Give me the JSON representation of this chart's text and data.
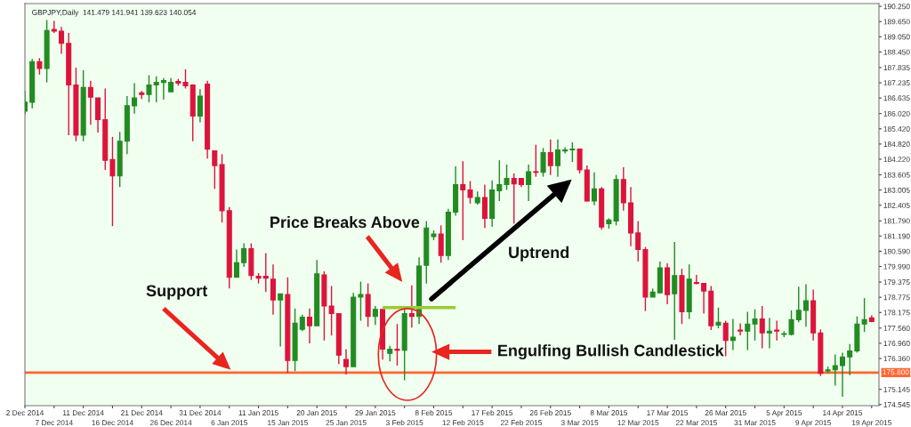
{
  "chart_data": {
    "type": "candlestick",
    "title": "GBPJPY,Daily  141.479 141.941 139.623 140.054",
    "categories": [
      "2 Dec 2014",
      null,
      null,
      null,
      "7 Dec 2014",
      null,
      null,
      null,
      "11 Dec 2014",
      null,
      null,
      null,
      "16 Dec 2014",
      null,
      null,
      null,
      "21 Dec 2014",
      null,
      null,
      null,
      "26 Dec 2014",
      null,
      null,
      null,
      "31 Dec 2014",
      null,
      null,
      null,
      "6 Jan 2015",
      null,
      null,
      null,
      "11 Jan 2015",
      null,
      null,
      null,
      "15 Jan 2015",
      null,
      null,
      null,
      "20 Jan 2015",
      null,
      null,
      null,
      "25 Jan 2015",
      null,
      null,
      null,
      "29 Jan 2015",
      null,
      null,
      null,
      "3 Feb 2015",
      null,
      null,
      null,
      "8 Feb 2015",
      null,
      null,
      null,
      "12 Feb 2015",
      null,
      null,
      null,
      "17 Feb 2015",
      null,
      null,
      null,
      "22 Feb 2015",
      null,
      null,
      null,
      "26 Feb 2015",
      null,
      null,
      null,
      "3 Mar 2015",
      null,
      null,
      null,
      "8 Mar 2015",
      null,
      null,
      null,
      "12 Mar 2015",
      null,
      null,
      null,
      "17 Mar 2015",
      null,
      null,
      null,
      "22 Mar 2015",
      null,
      null,
      null,
      "26 Mar 2015",
      null,
      null,
      null,
      "31 Mar 2015",
      null,
      null,
      null,
      "5 Apr 2015",
      null,
      null,
      null,
      "9 Apr 2015",
      null,
      null,
      null,
      "14 Apr 2015",
      null,
      null,
      null,
      "19 Apr 2015"
    ],
    "ohlc": [
      [
        186.12,
        186.91,
        185.99,
        186.47
      ],
      [
        186.47,
        188.18,
        186.23,
        188.07
      ],
      [
        188.07,
        188.21,
        187.56,
        187.8
      ],
      [
        187.8,
        189.71,
        187.25,
        189.3
      ],
      [
        189.34,
        189.68,
        189.2,
        189.27
      ],
      [
        189.27,
        189.44,
        188.38,
        188.79
      ],
      [
        188.79,
        189.2,
        185.17,
        187.15
      ],
      [
        187.15,
        187.83,
        184.93,
        185.17
      ],
      [
        185.17,
        187.73,
        184.93,
        187.05
      ],
      [
        187.05,
        187.32,
        185.58,
        186.67
      ],
      [
        186.64,
        186.64,
        185.27,
        185.78
      ],
      [
        185.78,
        187.01,
        183.8,
        184.18
      ],
      [
        184.21,
        185.1,
        181.58,
        183.56
      ],
      [
        183.56,
        185.3,
        183.12,
        184.93
      ],
      [
        184.93,
        186.71,
        184.42,
        186.33
      ],
      [
        186.33,
        187.22,
        186.02,
        186.64
      ],
      [
        186.84,
        186.91,
        186.6,
        186.77
      ],
      [
        186.77,
        187.53,
        186.47,
        187.15
      ],
      [
        187.15,
        187.49,
        186.47,
        187.25
      ],
      [
        187.25,
        187.42,
        186.57,
        187.32
      ],
      [
        186.88,
        187.42,
        186.88,
        187.25
      ],
      [
        187.29,
        187.39,
        187.12,
        187.22
      ],
      [
        187.25,
        187.77,
        187.01,
        187.12
      ],
      [
        187.15,
        187.18,
        184.93,
        185.92
      ],
      [
        185.92,
        186.98,
        185.68,
        186.71
      ],
      [
        187.18,
        187.32,
        184.25,
        184.62
      ],
      [
        184.55,
        184.55,
        183.05,
        183.97
      ],
      [
        184.01,
        184.42,
        181.72,
        182.19
      ],
      [
        182.19,
        182.33,
        179.12,
        179.56
      ],
      [
        179.56,
        180.66,
        179.56,
        180.14
      ],
      [
        180.14,
        180.9,
        179.97,
        180.69
      ],
      [
        180.69,
        180.9,
        179.46,
        179.63
      ],
      [
        179.6,
        179.73,
        179.32,
        179.53
      ],
      [
        179.6,
        180.52,
        178.98,
        179.53
      ],
      [
        179.49,
        180.07,
        178.09,
        178.67
      ],
      [
        178.67,
        178.91,
        176.83,
        178.91
      ],
      [
        178.88,
        179.56,
        175.8,
        176.28
      ],
      [
        176.28,
        178.33,
        175.87,
        177.75
      ],
      [
        177.51,
        178.09,
        177.44,
        177.99
      ],
      [
        177.99,
        178.33,
        176.96,
        177.65
      ],
      [
        177.65,
        180.25,
        177.65,
        179.7
      ],
      [
        179.66,
        179.8,
        177.07,
        178.43
      ],
      [
        178.43,
        179.22,
        177.27,
        178.13
      ],
      [
        178.13,
        178.13,
        176.14,
        176.49
      ],
      [
        176.32,
        176.73,
        175.73,
        176.04
      ],
      [
        176.04,
        178.95,
        176.04,
        178.78
      ],
      [
        178.78,
        179.39,
        177.85,
        178.88
      ],
      [
        178.88,
        179.32,
        177.61,
        178.02
      ],
      [
        178.02,
        178.43,
        177.68,
        178.3
      ],
      [
        178.3,
        178.3,
        176.32,
        176.73
      ],
      [
        176.56,
        176.86,
        176.25,
        176.73
      ],
      [
        176.73,
        177.72,
        176.08,
        176.69
      ],
      [
        176.69,
        178.4,
        175.5,
        178.13
      ],
      [
        178.13,
        179.25,
        177.58,
        178.02
      ],
      [
        178.02,
        180.35,
        177.72,
        180.01
      ],
      [
        180.04,
        181.78,
        179.32,
        181.51
      ],
      [
        181.17,
        181.41,
        181.03,
        181.27
      ],
      [
        181.27,
        181.61,
        180.14,
        180.42
      ],
      [
        180.42,
        182.26,
        180.25,
        182.13
      ],
      [
        182.13,
        183.94,
        181.99,
        183.22
      ],
      [
        183.22,
        184.14,
        181.03,
        183.01
      ],
      [
        183.01,
        183.36,
        182.47,
        182.71
      ],
      [
        182.5,
        182.95,
        182.43,
        182.71
      ],
      [
        182.71,
        183.22,
        181.51,
        181.89
      ],
      [
        181.89,
        183.39,
        181.55,
        183.01
      ],
      [
        182.98,
        184.18,
        182.57,
        183.22
      ],
      [
        183.22,
        184.01,
        183.01,
        183.46
      ],
      [
        183.46,
        183.66,
        181.68,
        183.25
      ],
      [
        183.46,
        183.46,
        183.12,
        183.22
      ],
      [
        183.22,
        184.01,
        182.57,
        183.73
      ],
      [
        183.73,
        184.79,
        183.53,
        183.7
      ],
      [
        183.7,
        184.66,
        183.53,
        184.48
      ],
      [
        184.48,
        185.0,
        183.6,
        183.97
      ],
      [
        183.97,
        185.0,
        183.53,
        184.59
      ],
      [
        184.55,
        184.69,
        184.45,
        184.59
      ],
      [
        184.59,
        184.89,
        184.11,
        184.62
      ],
      [
        184.62,
        184.62,
        183.66,
        183.8
      ],
      [
        183.8,
        183.97,
        182.54,
        182.57
      ],
      [
        182.57,
        183.7,
        182.4,
        183.05
      ],
      [
        183.05,
        183.12,
        181.44,
        181.55
      ],
      [
        181.68,
        181.89,
        181.48,
        181.82
      ],
      [
        181.78,
        183.6,
        181.61,
        183.42
      ],
      [
        183.42,
        183.9,
        182.19,
        182.5
      ],
      [
        182.5,
        183.12,
        180.79,
        181.31
      ],
      [
        181.31,
        181.78,
        180.18,
        180.66
      ],
      [
        180.66,
        180.76,
        178.23,
        178.78
      ],
      [
        178.78,
        179.12,
        178.78,
        178.98
      ],
      [
        178.95,
        180.18,
        178.95,
        179.94
      ],
      [
        179.94,
        180.11,
        178.5,
        178.88
      ],
      [
        178.91,
        180.96,
        177.1,
        179.63
      ],
      [
        179.63,
        179.9,
        177.72,
        178.2
      ],
      [
        178.2,
        180.07,
        177.92,
        179.49
      ],
      [
        179.36,
        179.66,
        179.29,
        179.32
      ],
      [
        179.32,
        179.32,
        178.13,
        179.02
      ],
      [
        179.02,
        179.22,
        177.48,
        177.65
      ],
      [
        177.68,
        178.37,
        177.55,
        177.79
      ],
      [
        177.75,
        177.85,
        176.45,
        177.07
      ],
      [
        177.07,
        177.92,
        176.69,
        177.2
      ],
      [
        177.48,
        177.75,
        177.27,
        177.44
      ],
      [
        177.44,
        178.2,
        176.69,
        177.72
      ],
      [
        177.72,
        178.3,
        177.07,
        177.92
      ],
      [
        177.92,
        178.43,
        176.76,
        177.37
      ],
      [
        177.37,
        177.96,
        176.76,
        177.44
      ],
      [
        177.48,
        177.85,
        177.07,
        177.44
      ],
      [
        177.31,
        177.44,
        177.2,
        177.34
      ],
      [
        177.31,
        178.26,
        177.27,
        177.89
      ],
      [
        177.89,
        179.19,
        177.79,
        178.26
      ],
      [
        178.26,
        179.29,
        177.61,
        178.64
      ],
      [
        178.64,
        179.08,
        177.07,
        177.37
      ],
      [
        177.37,
        177.51,
        175.67,
        175.77
      ],
      [
        175.87,
        176.04,
        175.77,
        175.91
      ],
      [
        175.91,
        176.52,
        175.29,
        176.08
      ],
      [
        176.08,
        176.59,
        174.85,
        176.42
      ],
      [
        176.42,
        176.93,
        175.7,
        176.66
      ],
      [
        176.66,
        178.02,
        176.59,
        177.72
      ],
      [
        177.72,
        178.74,
        177.41,
        177.89
      ],
      [
        177.96,
        178.06,
        177.79,
        177.82
      ]
    ],
    "colors": [
      "#228b22",
      "#228b22",
      "#dc143c",
      "#228b22",
      "#dc143c",
      "#dc143c",
      "#dc143c",
      "#dc143c",
      "#228b22",
      "#dc143c",
      "#dc143c",
      "#dc143c",
      "#dc143c",
      "#228b22",
      "#228b22",
      "#228b22",
      "#dc143c",
      "#228b22",
      "#228b22",
      "#228b22",
      "#228b22",
      "#dc143c",
      "#dc143c",
      "#dc143c",
      "#228b22",
      "#dc143c",
      "#dc143c",
      "#dc143c",
      "#dc143c",
      "#228b22",
      "#228b22",
      "#dc143c",
      "#dc143c",
      "#dc143c",
      "#dc143c",
      "#228b22",
      "#dc143c",
      "#228b22",
      "#228b22",
      "#dc143c",
      "#228b22",
      "#dc143c",
      "#dc143c",
      "#dc143c",
      "#dc143c",
      "#228b22",
      "#228b22",
      "#dc143c",
      "#228b22",
      "#dc143c",
      "#228b22",
      "#dc143c",
      "#228b22",
      "#dc143c",
      "#228b22",
      "#228b22",
      "#228b22",
      "#dc143c",
      "#228b22",
      "#228b22",
      "#dc143c",
      "#dc143c",
      "#228b22",
      "#dc143c",
      "#228b22",
      "#228b22",
      "#228b22",
      "#dc143c",
      "#dc143c",
      "#228b22",
      "#dc143c",
      "#228b22",
      "#dc143c",
      "#228b22",
      "#228b22",
      "#228b22",
      "#dc143c",
      "#dc143c",
      "#228b22",
      "#dc143c",
      "#228b22",
      "#228b22",
      "#dc143c",
      "#dc143c",
      "#dc143c",
      "#dc143c",
      "#228b22",
      "#228b22",
      "#dc143c",
      "#228b22",
      "#dc143c",
      "#228b22",
      "#dc143c",
      "#dc143c",
      "#dc143c",
      "#228b22",
      "#dc143c",
      "#228b22",
      "#dc143c",
      "#228b22",
      "#228b22",
      "#dc143c",
      "#228b22",
      "#dc143c",
      "#228b22",
      "#228b22",
      "#228b22",
      "#228b22",
      "#dc143c",
      "#dc143c",
      "#228b22",
      "#228b22",
      "#228b22",
      "#228b22",
      "#228b22",
      "#228b22",
      "#dc143c"
    ],
    "series": [
      {
        "type": "line",
        "color": "#99cc33",
        "values": [
          null,
          null,
          null,
          null,
          null,
          null,
          null,
          null,
          null,
          null,
          null,
          null,
          null,
          null,
          null,
          null,
          null,
          null,
          null,
          null,
          null,
          null,
          null,
          null,
          null,
          null,
          null,
          null,
          null,
          null,
          null,
          null,
          null,
          null,
          null,
          null,
          null,
          null,
          null,
          null,
          null,
          null,
          null,
          null,
          null,
          null,
          null,
          null,
          null,
          178.37,
          178.37,
          178.37,
          178.37,
          178.37,
          178.37,
          178.37,
          178.37,
          178.37,
          178.37,
          178.37,
          null,
          null,
          null,
          null,
          null,
          null,
          null,
          null,
          null,
          null,
          null,
          null,
          null,
          null,
          null,
          null,
          null,
          null,
          null,
          null,
          null,
          null,
          null,
          null,
          null,
          null,
          null,
          null,
          null,
          null,
          null,
          null,
          null,
          null,
          null,
          null,
          null,
          null,
          null,
          null,
          null,
          null,
          null,
          null,
          null,
          null,
          null,
          null,
          null,
          null,
          null,
          null,
          null,
          null,
          null,
          null,
          null
        ]
      }
    ],
    "ylim": [
      174.5,
      190.36
    ],
    "yticks": [
      {
        "value": 190.25,
        "label": "190.250"
      },
      {
        "value": 189.65,
        "label": "189.650"
      },
      {
        "value": 189.05,
        "label": "189.050"
      },
      {
        "value": 188.45,
        "label": "188.450"
      },
      {
        "value": 187.835,
        "label": "187.835"
      },
      {
        "value": 187.235,
        "label": "187.235"
      },
      {
        "value": 186.635,
        "label": "186.635"
      },
      {
        "value": 186.02,
        "label": "186.020"
      },
      {
        "value": 185.42,
        "label": "185.420"
      },
      {
        "value": 184.82,
        "label": "184.820"
      },
      {
        "value": 184.22,
        "label": "184.220"
      },
      {
        "value": 183.605,
        "label": "183.605"
      },
      {
        "value": 183.005,
        "label": "183.005"
      },
      {
        "value": 182.405,
        "label": "182.405"
      },
      {
        "value": 181.79,
        "label": "181.790"
      },
      {
        "value": 181.19,
        "label": "181.190"
      },
      {
        "value": 180.59,
        "label": "180.590"
      },
      {
        "value": 179.99,
        "label": "179.990"
      },
      {
        "value": 179.375,
        "label": "179.375"
      },
      {
        "value": 178.775,
        "label": "178.775"
      },
      {
        "value": 178.175,
        "label": "178.175"
      },
      {
        "value": 177.56,
        "label": "177.560"
      },
      {
        "value": 176.96,
        "label": "176.960"
      },
      {
        "value": 176.36,
        "label": "176.360"
      },
      {
        "value": 175.145,
        "label": "175.145"
      },
      {
        "value": 174.545,
        "label": "174.545"
      }
    ],
    "ref_lines": [
      {
        "axis": "y",
        "value": 175.8,
        "label": "175.800",
        "color": "#ff6633"
      }
    ],
    "annotations": [
      "Price Breaks Above",
      "Uptrend",
      "Support",
      "Engulfing Bullish Candlestick"
    ]
  }
}
